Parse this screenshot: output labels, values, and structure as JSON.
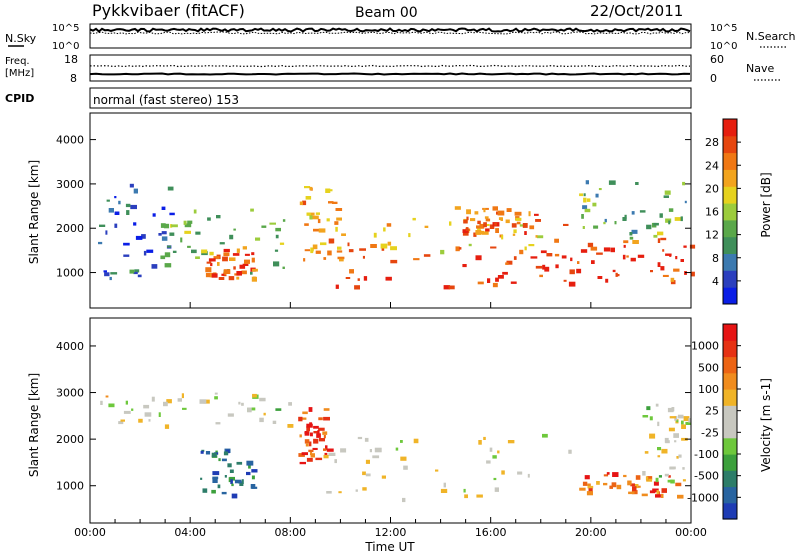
{
  "header": {
    "title": "Pykkvibaer (fitACF)",
    "beam": "Beam 00",
    "date": "22/Oct/2011"
  },
  "top_panels": {
    "nsky_label": "N.Sky",
    "nsky_top_tick": "10^5",
    "nsky_bottom_tick": "10^0",
    "nsearch_label": "N.Search",
    "nsearch_top_tick": "10^5",
    "nsearch_bottom_tick": "10^0",
    "freq_label_line1": "Freq.",
    "freq_label_line2": "[MHz]",
    "freq_top_tick": "18",
    "freq_bottom_tick": "8",
    "nave_label": "Nave",
    "nave_top_tick": "60",
    "nave_bottom_tick": "0",
    "cpid_label": "CPID",
    "cpid_text": "normal (fast stereo) 153"
  },
  "chart_data": [
    {
      "type": "heatmap",
      "name": "power",
      "ylabel": "Slant Range [km]",
      "ylim": [
        200,
        4600
      ],
      "yticks": [
        1000,
        2000,
        3000,
        4000
      ],
      "xlim": [
        0,
        24
      ],
      "colorbar_label": "Power [dB]",
      "colorbar_ticks": [
        4,
        8,
        12,
        16,
        20,
        24,
        28
      ],
      "colorbar_colors": [
        "#0a1ee6",
        "#2b3fbe",
        "#3c7ab0",
        "#3f8f5a",
        "#5aa84a",
        "#9ccc3c",
        "#e6d21e",
        "#f2a41e",
        "#f07814",
        "#e6460f",
        "#e61e0f"
      ],
      "echo_regions": [
        {
          "t0": 0.3,
          "t1": 3.2,
          "r0": 900,
          "r1": 3100,
          "level": 0.2
        },
        {
          "t0": 2.5,
          "t1": 8.0,
          "r0": 1000,
          "r1": 2500,
          "level": 0.45
        },
        {
          "t0": 4.6,
          "t1": 6.5,
          "r0": 900,
          "r1": 1600,
          "level": 0.85
        },
        {
          "t0": 8.3,
          "t1": 10.0,
          "r0": 1300,
          "r1": 3000,
          "level": 0.7
        },
        {
          "t0": 9.5,
          "t1": 19.5,
          "r0": 700,
          "r1": 1600,
          "level": 0.95
        },
        {
          "t0": 10.0,
          "t1": 19.0,
          "r0": 1500,
          "r1": 2300,
          "level": 0.7
        },
        {
          "t0": 14.5,
          "t1": 18.0,
          "r0": 1900,
          "r1": 2500,
          "level": 0.85
        },
        {
          "t0": 19.0,
          "t1": 24.0,
          "r0": 800,
          "r1": 1800,
          "level": 0.9
        },
        {
          "t0": 19.5,
          "t1": 24.0,
          "r0": 1800,
          "r1": 3100,
          "level": 0.4
        }
      ]
    },
    {
      "type": "heatmap",
      "name": "velocity",
      "ylabel": "Slant Range [km]",
      "ylim": [
        200,
        4600
      ],
      "yticks": [
        1000,
        2000,
        3000,
        4000
      ],
      "xlim": [
        0,
        24
      ],
      "xticks": [
        "00:00",
        "04:00",
        "08:00",
        "12:00",
        "16:00",
        "20:00",
        "00:00"
      ],
      "xlabel": "Time UT",
      "colorbar_label": "Velocity [m s-1]",
      "colorbar_ticks": [
        "1000",
        "500",
        "100",
        "25",
        "-25",
        "-100",
        "-500",
        "-1000"
      ],
      "colorbar_colors": [
        "#1e3cb4",
        "#2864a0",
        "#2d7d69",
        "#3ca03c",
        "#6ec83c",
        "#c8c8c0",
        "#c8c8c0",
        "#f0b428",
        "#f08c1e",
        "#ec6414",
        "#e63214",
        "#e61414"
      ],
      "echo_regions": [
        {
          "t0": 0.3,
          "t1": 8.0,
          "r0": 2300,
          "r1": 3000,
          "level": 0.5
        },
        {
          "t0": 4.2,
          "t1": 6.5,
          "r0": 800,
          "r1": 1800,
          "level": 0.15
        },
        {
          "t0": 8.3,
          "t1": 9.5,
          "r0": 1500,
          "r1": 2700,
          "level": 0.85
        },
        {
          "t0": 9.0,
          "t1": 19.5,
          "r0": 700,
          "r1": 2200,
          "level": 0.5
        },
        {
          "t0": 19.5,
          "t1": 23.5,
          "r0": 800,
          "r1": 1300,
          "level": 0.8
        },
        {
          "t0": 22.0,
          "t1": 24.0,
          "r0": 1000,
          "r1": 2800,
          "level": 0.5
        }
      ]
    }
  ]
}
